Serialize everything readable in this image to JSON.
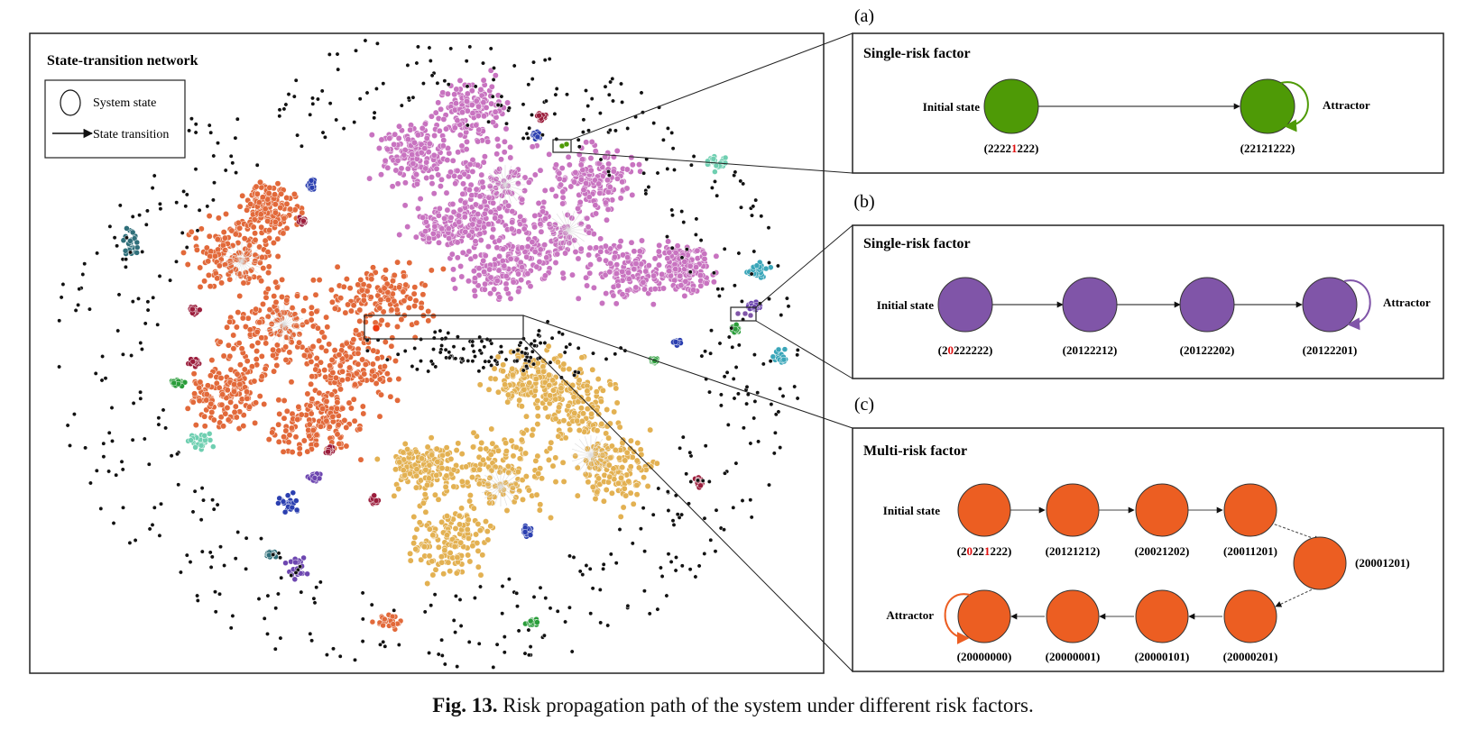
{
  "main_panel": {
    "title": "State-transition network",
    "legend": {
      "node_label": "System state",
      "edge_label": "State transition"
    },
    "colors": {
      "pink": "#c873c0",
      "orange": "#e2693a",
      "gold": "#e3b152",
      "black": "#111111",
      "teal": "#2f6f7a",
      "cyan": "#3aa6b9",
      "green": "#2a9d3a",
      "red": "#9b1d3c",
      "blue": "#2b3fb0",
      "purple": "#6d46b0",
      "mint": "#6fcfb1"
    }
  },
  "panels": [
    {
      "id": "a",
      "letter": "(a)",
      "title": "Single-risk factor",
      "color": "#4e9a06",
      "loop_color": "#4e9a06",
      "initial_label": "Initial state",
      "attractor_label": "Attractor",
      "states": [
        {
          "parts": [
            {
              "t": "2222",
              "red": false
            },
            {
              "t": "1",
              "red": true
            },
            {
              "t": "222",
              "red": false
            }
          ]
        },
        {
          "parts": [
            {
              "t": "22121222",
              "red": false
            }
          ]
        }
      ]
    },
    {
      "id": "b",
      "letter": "(b)",
      "title": "Single-risk factor",
      "color": "#8055a8",
      "loop_color": "#8055a8",
      "initial_label": "Initial state",
      "attractor_label": "Attractor",
      "states": [
        {
          "parts": [
            {
              "t": "2",
              "red": false
            },
            {
              "t": "0",
              "red": true
            },
            {
              "t": "222222",
              "red": false
            }
          ]
        },
        {
          "parts": [
            {
              "t": "20122212",
              "red": false
            }
          ]
        },
        {
          "parts": [
            {
              "t": "20122202",
              "red": false
            }
          ]
        },
        {
          "parts": [
            {
              "t": "20122201",
              "red": false
            }
          ]
        }
      ]
    },
    {
      "id": "c",
      "letter": "(c)",
      "title": "Multi-risk factor",
      "color": "#ec5e22",
      "loop_color": "#ec5e22",
      "initial_label": "Initial state",
      "attractor_label": "Attractor",
      "states": [
        {
          "parts": [
            {
              "t": "2",
              "red": false
            },
            {
              "t": "0",
              "red": true
            },
            {
              "t": "22",
              "red": false
            },
            {
              "t": "1",
              "red": true
            },
            {
              "t": "222",
              "red": false
            }
          ]
        },
        {
          "parts": [
            {
              "t": "20121212",
              "red": false
            }
          ]
        },
        {
          "parts": [
            {
              "t": "20021202",
              "red": false
            }
          ]
        },
        {
          "parts": [
            {
              "t": "20011201",
              "red": false
            }
          ]
        },
        {
          "parts": [
            {
              "t": "20001201",
              "red": false
            }
          ]
        },
        {
          "parts": [
            {
              "t": "20000201",
              "red": false
            }
          ]
        },
        {
          "parts": [
            {
              "t": "20000101",
              "red": false
            }
          ]
        },
        {
          "parts": [
            {
              "t": "20000001",
              "red": false
            }
          ]
        },
        {
          "parts": [
            {
              "t": "20000000",
              "red": false
            }
          ]
        }
      ]
    }
  ],
  "caption": {
    "label": "Fig. 13.",
    "text": " Risk propagation path of the system under different risk factors."
  }
}
